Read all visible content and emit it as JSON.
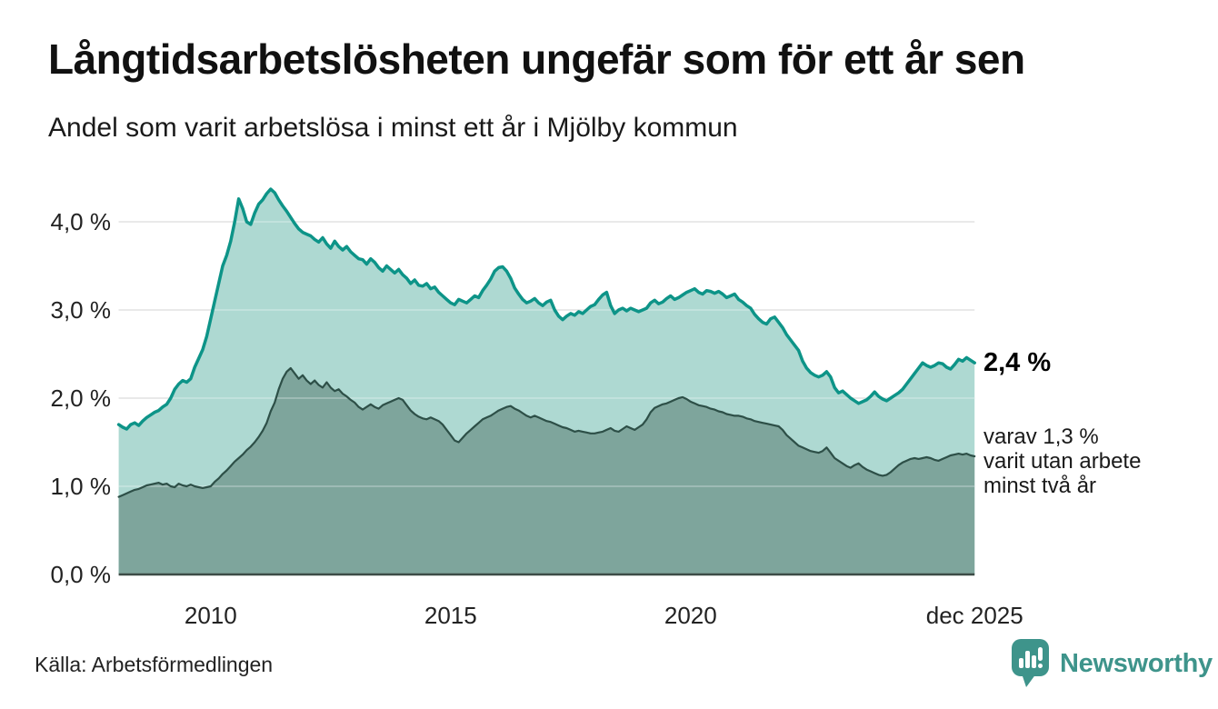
{
  "header": {
    "title": "Långtidsarbetslösheten ungefär som för ett år sen",
    "subtitle": "Andel som varit arbetslösa i minst ett år i Mjölby kommun"
  },
  "annotations": {
    "series1_end_value": "2,4 %",
    "series2_note_lines": [
      "varav 1,3 %",
      "varit utan arbete",
      "minst två år"
    ]
  },
  "footer": {
    "source": "Källa: Arbetsförmedlingen",
    "brand": "Newsworthy"
  },
  "colors": {
    "series1_line": "#0d9488",
    "series1_fill": "#aed9d2",
    "series2_line": "#2d4f47",
    "series2_fill": "#7ea59c",
    "gridline": "#e2e2e2",
    "axis_line": "#3c4b46",
    "tick_label": "#222222",
    "brand_teal": "#3e948b"
  },
  "chart_data": {
    "type": "area",
    "title": "Långtidsarbetslösheten ungefär som för ett år sen",
    "subtitle": "Andel som varit arbetslösa i minst ett år i Mjölby kommun",
    "unit": "%",
    "grid": true,
    "legend_position": "direct-labels-right",
    "x_start": 2008.083,
    "x_step": 0.08333,
    "ylim": [
      0,
      4.5
    ],
    "yticks": [
      {
        "value": 0,
        "label": "0,0 %"
      },
      {
        "value": 1,
        "label": "1,0 %"
      },
      {
        "value": 2,
        "label": "2,0 %"
      },
      {
        "value": 3,
        "label": "3,0 %"
      },
      {
        "value": 4,
        "label": "4,0 %"
      }
    ],
    "xticks": [
      {
        "value": 2010,
        "label": "2010"
      },
      {
        "value": 2015,
        "label": "2015"
      },
      {
        "value": 2020,
        "label": "2020"
      },
      {
        "value": 2025.917,
        "label": "dec 2025"
      }
    ],
    "series": [
      {
        "name": "Andel arbetslösa minst ett år",
        "end_label": "2,4 %",
        "end_value": 2.4,
        "line_color": "#0d9488",
        "fill_color": "#aed9d2",
        "line_width": 3.5,
        "values": [
          1.7,
          1.67,
          1.65,
          1.7,
          1.72,
          1.69,
          1.74,
          1.78,
          1.81,
          1.84,
          1.86,
          1.9,
          1.93,
          2.0,
          2.1,
          2.16,
          2.2,
          2.18,
          2.22,
          2.35,
          2.45,
          2.55,
          2.7,
          2.9,
          3.1,
          3.3,
          3.5,
          3.62,
          3.78,
          4.0,
          4.26,
          4.15,
          4.0,
          3.97,
          4.1,
          4.2,
          4.25,
          4.32,
          4.37,
          4.33,
          4.25,
          4.18,
          4.12,
          4.05,
          3.98,
          3.92,
          3.88,
          3.86,
          3.84,
          3.8,
          3.77,
          3.82,
          3.75,
          3.7,
          3.78,
          3.72,
          3.68,
          3.72,
          3.66,
          3.62,
          3.58,
          3.57,
          3.52,
          3.58,
          3.54,
          3.48,
          3.44,
          3.5,
          3.46,
          3.42,
          3.46,
          3.4,
          3.36,
          3.3,
          3.34,
          3.28,
          3.27,
          3.3,
          3.24,
          3.26,
          3.2,
          3.16,
          3.12,
          3.08,
          3.06,
          3.12,
          3.1,
          3.08,
          3.12,
          3.16,
          3.14,
          3.22,
          3.28,
          3.35,
          3.44,
          3.48,
          3.49,
          3.44,
          3.36,
          3.25,
          3.18,
          3.12,
          3.08,
          3.1,
          3.13,
          3.08,
          3.05,
          3.09,
          3.11,
          3.0,
          2.93,
          2.89,
          2.93,
          2.96,
          2.94,
          2.98,
          2.96,
          3.0,
          3.04,
          3.06,
          3.12,
          3.17,
          3.2,
          3.05,
          2.96,
          3.0,
          3.02,
          2.99,
          3.02,
          3.0,
          2.98,
          3.0,
          3.02,
          3.08,
          3.11,
          3.07,
          3.09,
          3.13,
          3.16,
          3.12,
          3.14,
          3.17,
          3.2,
          3.22,
          3.24,
          3.2,
          3.18,
          3.22,
          3.21,
          3.19,
          3.21,
          3.18,
          3.14,
          3.16,
          3.18,
          3.12,
          3.09,
          3.05,
          3.02,
          2.95,
          2.9,
          2.86,
          2.84,
          2.9,
          2.92,
          2.86,
          2.8,
          2.72,
          2.66,
          2.6,
          2.54,
          2.42,
          2.34,
          2.29,
          2.26,
          2.24,
          2.26,
          2.3,
          2.24,
          2.12,
          2.06,
          2.08,
          2.04,
          2.0,
          1.97,
          1.94,
          1.96,
          1.98,
          2.02,
          2.07,
          2.02,
          1.99,
          1.97,
          2.0,
          2.03,
          2.06,
          2.1,
          2.16,
          2.22,
          2.28,
          2.34,
          2.4,
          2.37,
          2.35,
          2.37,
          2.4,
          2.39,
          2.35,
          2.33,
          2.38,
          2.44,
          2.42,
          2.46,
          2.43,
          2.4
        ]
      },
      {
        "name": "varav utan arbete minst två år",
        "end_label": "varav 1,3 % varit utan arbete minst två år",
        "end_value": 1.3,
        "line_color": "#2d4f47",
        "fill_color": "#7ea59c",
        "line_width": 2.2,
        "values": [
          0.88,
          0.9,
          0.92,
          0.94,
          0.96,
          0.97,
          0.99,
          1.01,
          1.02,
          1.03,
          1.04,
          1.02,
          1.03,
          1.0,
          0.99,
          1.03,
          1.01,
          1.0,
          1.02,
          1.0,
          0.99,
          0.98,
          0.99,
          1.0,
          1.05,
          1.09,
          1.14,
          1.18,
          1.23,
          1.28,
          1.32,
          1.36,
          1.41,
          1.45,
          1.5,
          1.56,
          1.63,
          1.72,
          1.85,
          1.95,
          2.1,
          2.22,
          2.3,
          2.34,
          2.28,
          2.22,
          2.26,
          2.2,
          2.16,
          2.2,
          2.15,
          2.12,
          2.18,
          2.12,
          2.08,
          2.1,
          2.05,
          2.02,
          1.98,
          1.95,
          1.9,
          1.87,
          1.9,
          1.93,
          1.9,
          1.88,
          1.92,
          1.94,
          1.96,
          1.98,
          2.0,
          1.98,
          1.92,
          1.86,
          1.82,
          1.79,
          1.77,
          1.76,
          1.78,
          1.76,
          1.74,
          1.7,
          1.64,
          1.58,
          1.52,
          1.5,
          1.55,
          1.6,
          1.64,
          1.68,
          1.72,
          1.76,
          1.78,
          1.8,
          1.83,
          1.86,
          1.88,
          1.9,
          1.91,
          1.88,
          1.86,
          1.83,
          1.8,
          1.78,
          1.8,
          1.78,
          1.76,
          1.74,
          1.73,
          1.71,
          1.69,
          1.67,
          1.66,
          1.64,
          1.62,
          1.63,
          1.62,
          1.61,
          1.6,
          1.6,
          1.61,
          1.62,
          1.64,
          1.66,
          1.63,
          1.62,
          1.65,
          1.68,
          1.66,
          1.64,
          1.67,
          1.7,
          1.76,
          1.84,
          1.89,
          1.91,
          1.93,
          1.94,
          1.96,
          1.98,
          2.0,
          2.01,
          1.99,
          1.96,
          1.94,
          1.92,
          1.91,
          1.9,
          1.88,
          1.87,
          1.85,
          1.84,
          1.82,
          1.81,
          1.8,
          1.8,
          1.79,
          1.77,
          1.76,
          1.74,
          1.73,
          1.72,
          1.71,
          1.7,
          1.69,
          1.68,
          1.64,
          1.58,
          1.54,
          1.5,
          1.46,
          1.44,
          1.42,
          1.4,
          1.39,
          1.38,
          1.4,
          1.44,
          1.38,
          1.32,
          1.29,
          1.26,
          1.23,
          1.21,
          1.24,
          1.26,
          1.22,
          1.19,
          1.17,
          1.15,
          1.13,
          1.12,
          1.13,
          1.16,
          1.2,
          1.24,
          1.27,
          1.29,
          1.31,
          1.32,
          1.31,
          1.32,
          1.33,
          1.32,
          1.3,
          1.29,
          1.31,
          1.33,
          1.35,
          1.36,
          1.37,
          1.36,
          1.37,
          1.35,
          1.34
        ]
      }
    ]
  }
}
